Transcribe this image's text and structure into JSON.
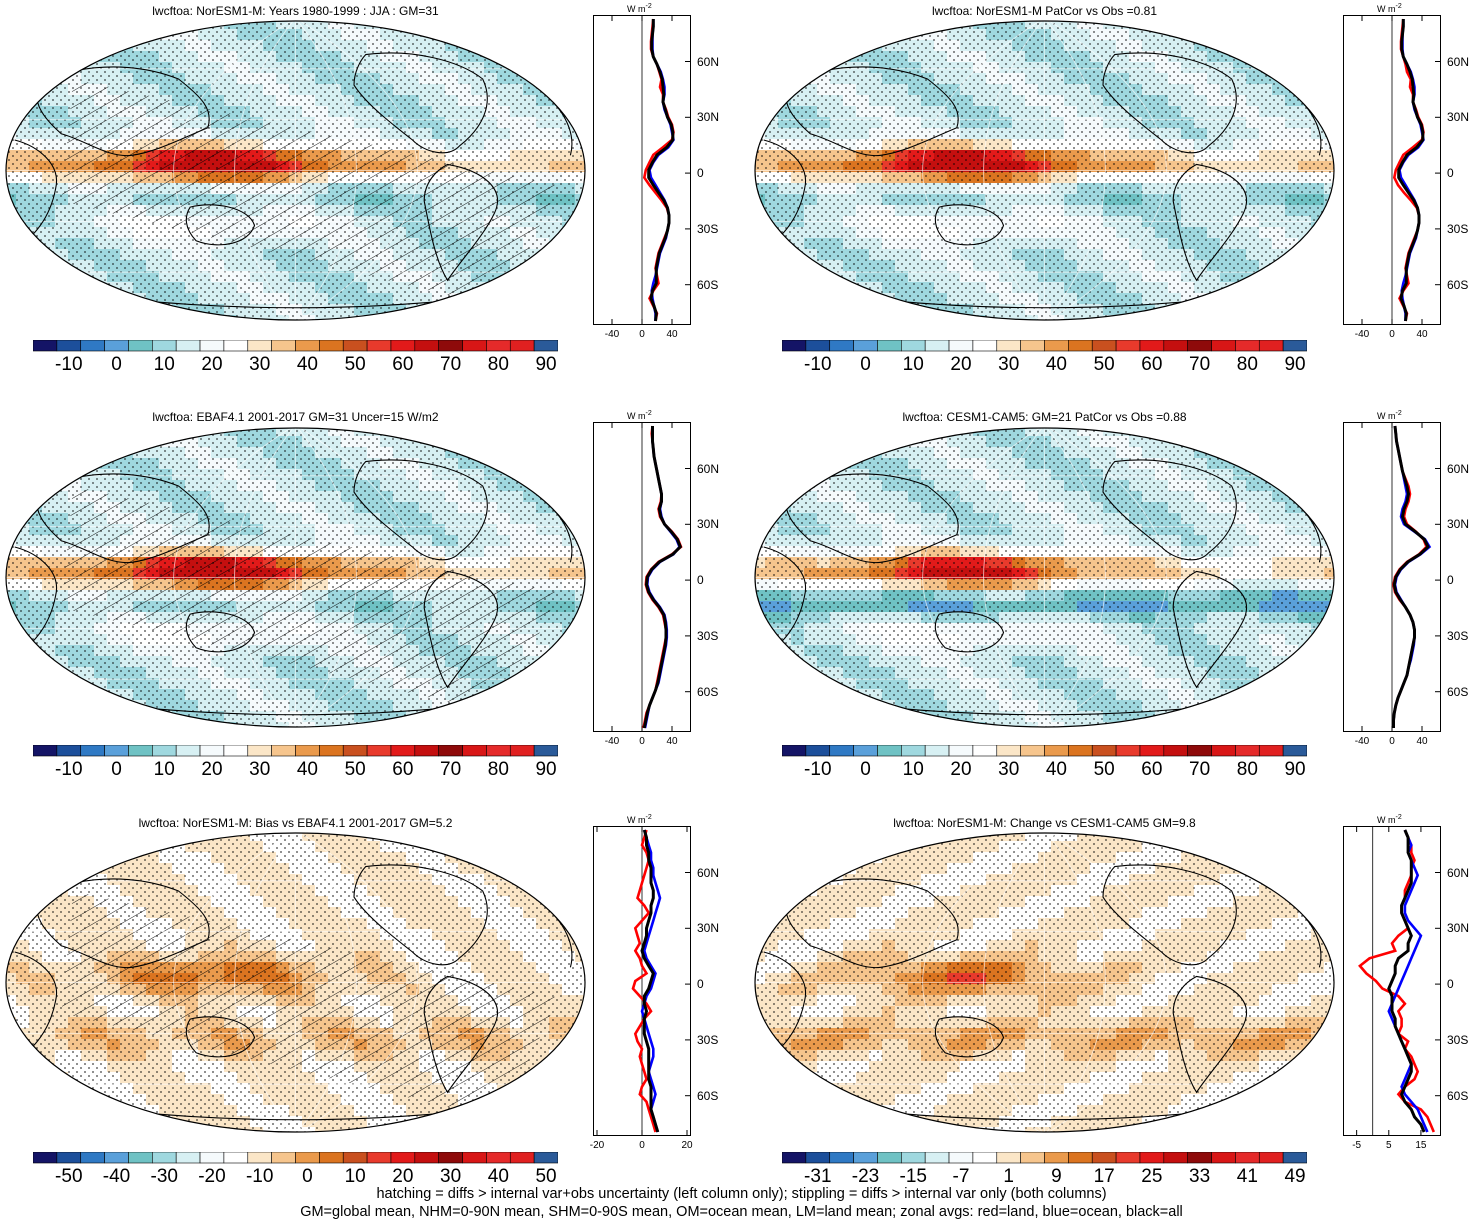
{
  "figure": {
    "footnote_line1": "hatching = diffs > internal var+obs uncertainty (left column only); stippling = diffs > internal var only (both columns)",
    "footnote_line2": "GM=global mean, NHM=0-90N mean, SHM=0-90S mean, OM=ocean mean, LM=land mean; zonal avgs: red=land, blue=ocean, black=all"
  },
  "colors": {
    "land": "#ff0000",
    "ocean": "#0000ff",
    "all": "#000000",
    "palette_main": [
      "#141466",
      "#1c4f9b",
      "#2f79c4",
      "#5aa0da",
      "#6fc2c4",
      "#9fd8df",
      "#d7f0f3",
      "#f5fafc",
      "#ffffff",
      "#fbe6c7",
      "#f6c58d",
      "#ea9a4c",
      "#db7420",
      "#c9501f",
      "#e83a2c",
      "#e21a1a",
      "#c40f0f",
      "#8e0a0a",
      "#d81616",
      "#e52a2a",
      "#e02020",
      "#2a5a99"
    ]
  },
  "panels": [
    {
      "id": "a",
      "title": "lwcftoa: NorESM1-M: Years 1980-1999 : JJA : GM=31",
      "colorbar_labels": [
        "-10",
        "0",
        "10",
        "20",
        "30",
        "40",
        "50",
        "60",
        "70",
        "80",
        "90"
      ],
      "profile": {
        "unit": "W m",
        "unit_sup": "-2",
        "xticks": [
          "-40",
          "0",
          "40"
        ],
        "xrange": [
          -60,
          60
        ],
        "lat_labels": [
          "60N",
          "30N",
          "0",
          "30S",
          "60S"
        ]
      },
      "zonal_data": {
        "land": [
          15,
          14,
          13,
          12,
          12,
          15,
          20,
          23,
          26,
          24,
          28,
          28,
          32,
          35,
          40,
          42,
          40,
          28,
          15,
          10,
          5,
          3,
          10,
          18,
          26,
          33,
          36,
          36,
          34,
          30,
          26,
          22,
          20,
          18,
          20,
          22,
          15,
          10,
          15,
          20,
          18
        ],
        "ocean": [
          15,
          15,
          14,
          14,
          14,
          15,
          20,
          25,
          28,
          30,
          30,
          28,
          30,
          34,
          38,
          40,
          42,
          35,
          22,
          15,
          10,
          12,
          18,
          24,
          30,
          34,
          36,
          36,
          34,
          32,
          28,
          24,
          22,
          20,
          18,
          15,
          13,
          14,
          16,
          18,
          18
        ],
        "all": [
          15,
          15,
          14,
          13,
          13,
          15,
          20,
          24,
          27,
          28,
          29,
          28,
          31,
          34,
          39,
          41,
          41,
          33,
          20,
          14,
          9,
          9,
          15,
          22,
          29,
          34,
          36,
          36,
          34,
          31,
          27,
          23,
          21,
          19,
          19,
          19,
          14,
          12,
          16,
          19,
          18
        ]
      }
    },
    {
      "id": "b",
      "title": "lwcftoa: NorESM1-M PatCor vs Obs =0.81",
      "colorbar_labels": [
        "-10",
        "0",
        "10",
        "20",
        "30",
        "40",
        "50",
        "60",
        "70",
        "80",
        "90"
      ],
      "profile": {
        "unit": "W m",
        "unit_sup": "-2",
        "xticks": [
          "-40",
          "0",
          "40"
        ],
        "xrange": [
          -60,
          60
        ],
        "lat_labels": [
          "60N",
          "30N",
          "0",
          "30S",
          "60S"
        ]
      },
      "zonal_data": {
        "land": [
          15,
          14,
          13,
          12,
          12,
          15,
          18,
          20,
          25,
          24,
          28,
          28,
          32,
          35,
          40,
          42,
          40,
          28,
          15,
          10,
          5,
          3,
          8,
          16,
          25,
          33,
          36,
          36,
          34,
          30,
          26,
          22,
          20,
          18,
          20,
          22,
          15,
          10,
          15,
          20,
          18
        ],
        "ocean": [
          15,
          15,
          14,
          14,
          14,
          15,
          20,
          25,
          28,
          30,
          30,
          28,
          30,
          34,
          38,
          40,
          42,
          35,
          22,
          15,
          10,
          12,
          18,
          24,
          30,
          34,
          36,
          36,
          34,
          32,
          28,
          24,
          22,
          20,
          18,
          15,
          13,
          14,
          16,
          18,
          18
        ],
        "all": [
          15,
          15,
          14,
          13,
          13,
          15,
          20,
          24,
          27,
          28,
          29,
          28,
          31,
          34,
          39,
          41,
          41,
          33,
          20,
          14,
          9,
          9,
          15,
          22,
          29,
          34,
          36,
          36,
          34,
          31,
          27,
          23,
          21,
          19,
          19,
          19,
          14,
          12,
          16,
          19,
          18
        ]
      }
    },
    {
      "id": "c",
      "title": "lwcftoa: EBAF4.1 2001-2017 GM=31 Uncer=15 W/m2",
      "colorbar_labels": [
        "-10",
        "0",
        "10",
        "20",
        "30",
        "40",
        "50",
        "60",
        "70",
        "80",
        "90"
      ],
      "profile": {
        "unit": "W m",
        "unit_sup": "-2",
        "xticks": [
          "-40",
          "0",
          "40"
        ],
        "xrange": [
          -60,
          60
        ],
        "lat_labels": [
          "60N",
          "30N",
          "0",
          "30S",
          "60S"
        ]
      },
      "zonal_data": {
        "land": [
          14,
          13,
          14,
          15,
          16,
          18,
          20,
          22,
          24,
          26,
          25,
          22,
          24,
          30,
          40,
          48,
          52,
          40,
          22,
          12,
          6,
          5,
          8,
          14,
          22,
          28,
          30,
          32,
          32,
          30,
          28,
          26,
          24,
          22,
          20,
          18,
          14,
          10,
          6,
          4,
          2
        ],
        "ocean": [
          14,
          14,
          14,
          15,
          16,
          18,
          20,
          22,
          24,
          26,
          26,
          24,
          26,
          30,
          38,
          46,
          50,
          42,
          24,
          14,
          8,
          7,
          10,
          16,
          24,
          30,
          32,
          33,
          33,
          32,
          30,
          28,
          26,
          24,
          22,
          18,
          14,
          10,
          8,
          6,
          4
        ],
        "all": [
          14,
          14,
          14,
          15,
          16,
          18,
          20,
          22,
          24,
          26,
          26,
          23,
          25,
          30,
          39,
          47,
          51,
          41,
          23,
          13,
          7,
          6,
          9,
          15,
          23,
          29,
          31,
          32,
          32,
          31,
          29,
          27,
          25,
          23,
          21,
          18,
          14,
          10,
          7,
          5,
          3
        ]
      }
    },
    {
      "id": "d",
      "title": "lwcftoa: CESM1-CAM5: GM=21 PatCor vs Obs =0.88",
      "colorbar_labels": [
        "-10",
        "0",
        "10",
        "20",
        "30",
        "40",
        "50",
        "60",
        "70",
        "80",
        "90"
      ],
      "profile": {
        "unit": "W m",
        "unit_sup": "-2",
        "xticks": [
          "-40",
          "0",
          "40"
        ],
        "xrange": [
          -60,
          60
        ],
        "lat_labels": [
          "60N",
          "30N",
          "0",
          "30S",
          "60S"
        ]
      },
      "zonal_data": {
        "land": [
          4,
          5,
          6,
          8,
          10,
          12,
          14,
          18,
          22,
          24,
          22,
          18,
          16,
          20,
          32,
          42,
          46,
          36,
          20,
          10,
          4,
          2,
          4,
          10,
          18,
          24,
          28,
          30,
          30,
          28,
          26,
          24,
          22,
          20,
          16,
          12,
          8,
          5,
          3,
          2,
          2
        ],
        "ocean": [
          4,
          5,
          6,
          8,
          10,
          12,
          14,
          16,
          18,
          20,
          18,
          14,
          12,
          16,
          30,
          44,
          50,
          38,
          22,
          12,
          6,
          4,
          6,
          12,
          18,
          24,
          28,
          30,
          30,
          29,
          27,
          25,
          22,
          20,
          16,
          12,
          8,
          5,
          3,
          2,
          2
        ],
        "all": [
          4,
          5,
          6,
          8,
          10,
          12,
          14,
          17,
          20,
          22,
          20,
          16,
          14,
          18,
          31,
          43,
          48,
          37,
          21,
          11,
          5,
          3,
          5,
          11,
          18,
          24,
          28,
          30,
          30,
          28,
          26,
          24,
          22,
          20,
          16,
          12,
          8,
          5,
          3,
          2,
          2
        ]
      }
    },
    {
      "id": "e",
      "title": "lwcftoa: NorESM1-M: Bias vs EBAF4.1 2001-2017 GM=5.2",
      "colorbar_labels": [
        "-50",
        "-40",
        "-30",
        "-20",
        "-10",
        "0",
        "10",
        "20",
        "30",
        "40",
        "50"
      ],
      "profile": {
        "unit": "W m",
        "unit_sup": "-2",
        "xticks": [
          "-20",
          "0",
          "20"
        ],
        "xrange": [
          -20,
          20
        ],
        "lat_labels": [
          "60N",
          "30N",
          "0",
          "30S",
          "60S"
        ]
      },
      "zonal_data": {
        "land": [
          2,
          1,
          0,
          2,
          3,
          2,
          1,
          0,
          -1,
          -2,
          1,
          3,
          0,
          -3,
          -2,
          -1,
          -3,
          -1,
          0,
          2,
          -3,
          -4,
          -1,
          2,
          4,
          1,
          -1,
          -3,
          -2,
          0,
          -1,
          0,
          1,
          2,
          0,
          -1,
          2,
          3,
          4,
          5,
          6
        ],
        "ocean": [
          1,
          2,
          3,
          4,
          4,
          5,
          5,
          6,
          7,
          8,
          7,
          6,
          5,
          4,
          3,
          2,
          1,
          2,
          4,
          6,
          5,
          4,
          2,
          1,
          0,
          1,
          2,
          3,
          4,
          5,
          5,
          4,
          3,
          4,
          5,
          6,
          5,
          4,
          5,
          6,
          7
        ],
        "all": [
          1,
          2,
          2,
          3,
          3,
          4,
          4,
          4,
          5,
          5,
          4,
          4,
          3,
          2,
          2,
          1,
          0,
          1,
          3,
          5,
          4,
          3,
          1,
          1,
          2,
          1,
          1,
          1,
          2,
          3,
          3,
          3,
          3,
          3,
          4,
          4,
          4,
          4,
          5,
          6,
          7
        ]
      }
    },
    {
      "id": "f",
      "title": "lwcftoa: NorESM1-M: Change vs CESM1-CAM5 GM=9.8",
      "colorbar_labels": [
        "-31",
        "-23",
        "-15",
        "-7",
        "1",
        "9",
        "17",
        "25",
        "33",
        "41",
        "49"
      ],
      "profile": {
        "unit": "W m",
        "unit_sup": "-2",
        "xticks": [
          "-5",
          "5",
          "15"
        ],
        "xrange": [
          -8,
          20
        ],
        "lat_labels": [
          "60N",
          "30N",
          "0",
          "30S",
          "60S"
        ]
      },
      "zonal_data": {
        "land": [
          10,
          11,
          12,
          12,
          13,
          12,
          12,
          11,
          10,
          10,
          9,
          9,
          10,
          11,
          8,
          6,
          7,
          -1,
          -4,
          -2,
          1,
          3,
          8,
          10,
          8,
          9,
          9,
          8,
          11,
          10,
          12,
          13,
          14,
          13,
          10,
          8,
          10,
          15,
          17,
          18,
          19
        ],
        "ocean": [
          10,
          11,
          12,
          11,
          12,
          13,
          14,
          13,
          12,
          11,
          10,
          10,
          11,
          13,
          15,
          14,
          13,
          12,
          11,
          10,
          9,
          8,
          7,
          6,
          5,
          6,
          7,
          8,
          9,
          10,
          11,
          12,
          11,
          10,
          9,
          10,
          12,
          14,
          15,
          16,
          17
        ],
        "all": [
          10,
          11,
          11,
          11,
          12,
          12,
          12,
          12,
          11,
          10,
          9,
          9,
          10,
          11,
          12,
          11,
          11,
          8,
          7,
          7,
          6,
          5,
          6,
          6,
          6,
          7,
          7,
          8,
          9,
          10,
          11,
          12,
          12,
          11,
          10,
          9,
          10,
          12,
          13,
          15,
          16
        ]
      }
    }
  ]
}
